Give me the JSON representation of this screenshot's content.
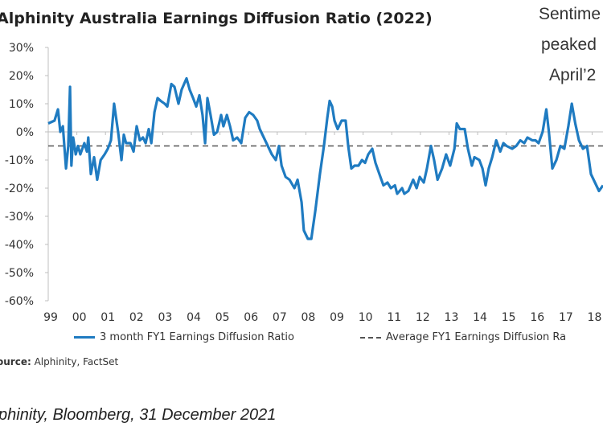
{
  "chart_data": {
    "type": "line",
    "title": "Alphinity Australia Earnings Diffusion Ratio (2022)",
    "annotation": [
      "Sentime",
      "peaked",
      "April’2"
    ],
    "xlabel": "",
    "ylabel": "",
    "xlim": [
      1999,
      2018.38
    ],
    "ylim": [
      -60,
      30
    ],
    "yticks": [
      30,
      20,
      10,
      0,
      -10,
      -20,
      -30,
      -40,
      -50,
      -60
    ],
    "ytick_labels": [
      "30%",
      "20%",
      "10%",
      "0%",
      "-10%",
      "-20%",
      "-30%",
      "-40%",
      "-50%",
      "-60%"
    ],
    "xticks": [
      1999,
      2000,
      2001,
      2002,
      2003,
      2004,
      2005,
      2006,
      2007,
      2008,
      2009,
      2010,
      2011,
      2012,
      2013,
      2014,
      2015,
      2016,
      2017,
      2018
    ],
    "xtick_labels": [
      "99",
      "00",
      "01",
      "02",
      "03",
      "04",
      "05",
      "06",
      "07",
      "08",
      "09",
      "10",
      "11",
      "12",
      "13",
      "14",
      "15",
      "16",
      "17",
      "18"
    ],
    "colors": {
      "series": "#1f7bc1",
      "average": "#555555",
      "axis": "#bfbfbf"
    },
    "series": [
      {
        "name": "3 month FY1 Earnings Diffusion Ratio",
        "points": [
          [
            1999.0,
            3
          ],
          [
            1999.22,
            4
          ],
          [
            1999.34,
            8
          ],
          [
            1999.42,
            0
          ],
          [
            1999.51,
            2
          ],
          [
            1999.62,
            -13
          ],
          [
            1999.7,
            -5
          ],
          [
            1999.76,
            16
          ],
          [
            1999.81,
            -12
          ],
          [
            1999.87,
            -2
          ],
          [
            1999.96,
            -8
          ],
          [
            2000.04,
            -5
          ],
          [
            2000.12,
            -8
          ],
          [
            2000.26,
            -4
          ],
          [
            2000.35,
            -7
          ],
          [
            2000.4,
            -2
          ],
          [
            2000.49,
            -15
          ],
          [
            2000.6,
            -9
          ],
          [
            2000.71,
            -17
          ],
          [
            2000.83,
            -10
          ],
          [
            2000.97,
            -8
          ],
          [
            2001.08,
            -6
          ],
          [
            2001.19,
            -3
          ],
          [
            2001.3,
            10
          ],
          [
            2001.44,
            0
          ],
          [
            2001.56,
            -10
          ],
          [
            2001.64,
            -1
          ],
          [
            2001.72,
            -4
          ],
          [
            2001.87,
            -4
          ],
          [
            2001.98,
            -7
          ],
          [
            2002.09,
            2
          ],
          [
            2002.2,
            -3
          ],
          [
            2002.31,
            -2
          ],
          [
            2002.4,
            -4
          ],
          [
            2002.51,
            1
          ],
          [
            2002.6,
            -4
          ],
          [
            2002.71,
            7
          ],
          [
            2002.82,
            12
          ],
          [
            2002.93,
            11
          ],
          [
            2003.07,
            10
          ],
          [
            2003.16,
            9
          ],
          [
            2003.3,
            17
          ],
          [
            2003.41,
            16
          ],
          [
            2003.55,
            10
          ],
          [
            2003.66,
            15
          ],
          [
            2003.83,
            19
          ],
          [
            2003.94,
            15
          ],
          [
            2004.06,
            12
          ],
          [
            2004.17,
            9
          ],
          [
            2004.28,
            13
          ],
          [
            2004.39,
            6
          ],
          [
            2004.48,
            -4
          ],
          [
            2004.56,
            12
          ],
          [
            2004.67,
            6
          ],
          [
            2004.79,
            -1
          ],
          [
            2004.9,
            0
          ],
          [
            2005.04,
            6
          ],
          [
            2005.12,
            2
          ],
          [
            2005.24,
            6
          ],
          [
            2005.35,
            2
          ],
          [
            2005.46,
            -3
          ],
          [
            2005.6,
            -2
          ],
          [
            2005.74,
            -4
          ],
          [
            2005.88,
            5
          ],
          [
            2006.02,
            7
          ],
          [
            2006.16,
            6
          ],
          [
            2006.3,
            4
          ],
          [
            2006.39,
            1
          ],
          [
            2006.53,
            -2
          ],
          [
            2006.67,
            -5
          ],
          [
            2006.81,
            -8
          ],
          [
            2006.95,
            -10
          ],
          [
            2007.06,
            -5
          ],
          [
            2007.15,
            -12
          ],
          [
            2007.29,
            -16
          ],
          [
            2007.43,
            -17
          ],
          [
            2007.6,
            -20
          ],
          [
            2007.71,
            -17
          ],
          [
            2007.85,
            -25
          ],
          [
            2007.93,
            -35
          ],
          [
            2008.07,
            -38
          ],
          [
            2008.19,
            -38
          ],
          [
            2008.33,
            -28
          ],
          [
            2008.49,
            -15
          ],
          [
            2008.63,
            -5
          ],
          [
            2008.75,
            5
          ],
          [
            2008.83,
            11
          ],
          [
            2008.92,
            9
          ],
          [
            2009.0,
            4
          ],
          [
            2009.11,
            1
          ],
          [
            2009.25,
            4
          ],
          [
            2009.39,
            4
          ],
          [
            2009.48,
            -5
          ],
          [
            2009.59,
            -13
          ],
          [
            2009.7,
            -12
          ],
          [
            2009.84,
            -12
          ],
          [
            2009.96,
            -10
          ],
          [
            2010.07,
            -11
          ],
          [
            2010.18,
            -8
          ],
          [
            2010.32,
            -6
          ],
          [
            2010.43,
            -11
          ],
          [
            2010.57,
            -15
          ],
          [
            2010.71,
            -19
          ],
          [
            2010.85,
            -18
          ],
          [
            2010.97,
            -20
          ],
          [
            2011.11,
            -19
          ],
          [
            2011.19,
            -22
          ],
          [
            2011.36,
            -20
          ],
          [
            2011.44,
            -22
          ],
          [
            2011.58,
            -21
          ],
          [
            2011.75,
            -17
          ],
          [
            2011.87,
            -20
          ],
          [
            2011.98,
            -16
          ],
          [
            2012.12,
            -18
          ],
          [
            2012.23,
            -13
          ],
          [
            2012.37,
            -5
          ],
          [
            2012.48,
            -10
          ],
          [
            2012.6,
            -17
          ],
          [
            2012.76,
            -13
          ],
          [
            2012.9,
            -8
          ],
          [
            2013.04,
            -12
          ],
          [
            2013.19,
            -6
          ],
          [
            2013.27,
            3
          ],
          [
            2013.38,
            1
          ],
          [
            2013.55,
            1
          ],
          [
            2013.66,
            -6
          ],
          [
            2013.8,
            -12
          ],
          [
            2013.89,
            -9
          ],
          [
            2014.06,
            -10
          ],
          [
            2014.17,
            -13
          ],
          [
            2014.28,
            -19
          ],
          [
            2014.39,
            -13
          ],
          [
            2014.51,
            -9
          ],
          [
            2014.65,
            -3
          ],
          [
            2014.79,
            -7
          ],
          [
            2014.9,
            -4
          ],
          [
            2015.01,
            -5
          ],
          [
            2015.21,
            -6
          ],
          [
            2015.35,
            -5
          ],
          [
            2015.49,
            -3
          ],
          [
            2015.63,
            -4
          ],
          [
            2015.74,
            -2
          ],
          [
            2015.91,
            -3
          ],
          [
            2016.02,
            -3
          ],
          [
            2016.13,
            -4
          ],
          [
            2016.27,
            0
          ],
          [
            2016.4,
            8
          ],
          [
            2016.49,
            0
          ],
          [
            2016.61,
            -13
          ],
          [
            2016.75,
            -10
          ],
          [
            2016.89,
            -5
          ],
          [
            2017.03,
            -6
          ],
          [
            2017.17,
            2
          ],
          [
            2017.29,
            10
          ],
          [
            2017.41,
            3
          ],
          [
            2017.54,
            -3
          ],
          [
            2017.68,
            -6
          ],
          [
            2017.82,
            -5
          ],
          [
            2017.96,
            -15
          ],
          [
            2018.1,
            -18
          ],
          [
            2018.24,
            -21
          ],
          [
            2018.38,
            -19
          ]
        ]
      },
      {
        "name": "Average FY1 Earnings Diffusion Ra",
        "constant": -5,
        "style": "dashed"
      }
    ],
    "legend": {
      "position": "bottom"
    },
    "grid": false
  },
  "source": {
    "label": "ource:",
    "text": "Alphinity, FactSet"
  },
  "footer": "phinity, Bloomberg, 31 December 2021"
}
